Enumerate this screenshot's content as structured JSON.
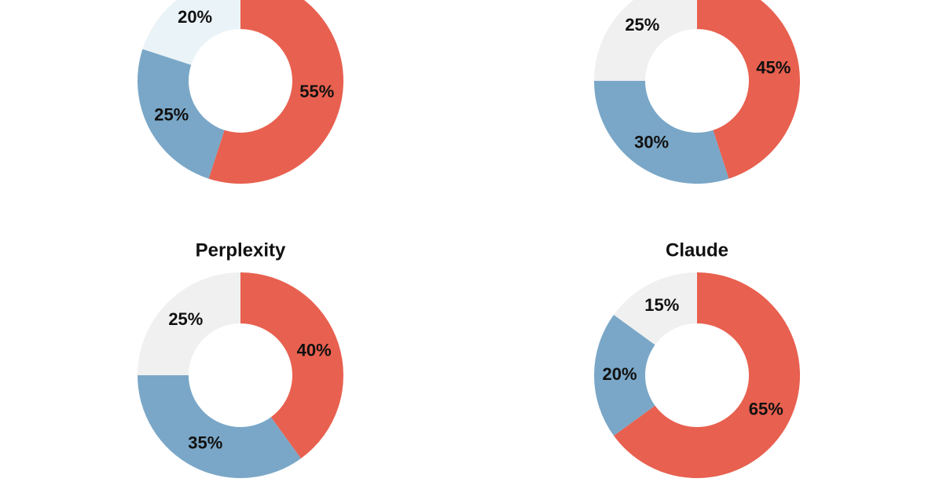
{
  "chart_data": [
    {
      "type": "donut",
      "values": [
        55,
        25,
        20
      ],
      "value_labels": [
        "55%",
        "25%",
        "20%"
      ],
      "colors": [
        "#e8604f",
        "#7aa7c7",
        "#eaf3f7"
      ]
    },
    {
      "type": "donut",
      "values": [
        45,
        30,
        25
      ],
      "value_labels": [
        "45%",
        "30%",
        "25%"
      ],
      "colors": [
        "#e8604f",
        "#7aa7c7",
        "#f0f0f0"
      ]
    },
    {
      "type": "donut",
      "title": "Perplexity",
      "values": [
        40,
        35,
        25
      ],
      "value_labels": [
        "40%",
        "35%",
        "25%"
      ],
      "colors": [
        "#e8604f",
        "#7aa7c7",
        "#f0f0f0"
      ]
    },
    {
      "type": "donut",
      "title": "Claude",
      "values": [
        65,
        20,
        15
      ],
      "value_labels": [
        "65%",
        "20%",
        "15%"
      ],
      "colors": [
        "#e8604f",
        "#7aa7c7",
        "#f0f0f0"
      ]
    }
  ]
}
